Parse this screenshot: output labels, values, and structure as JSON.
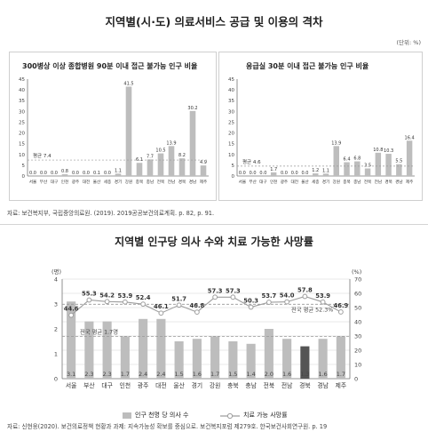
{
  "page": {
    "title1": "지역별(시·도) 의료서비스 공급 및 이용의 격차",
    "unit1": "(단위: %)",
    "source1": "자료: 보건복지부, 국립중앙의료원. (2019). 2019공공보건의료계획. p. 82, p. 91.",
    "title2": "지역별 인구당 의사 수와 치료 가능한 사망률",
    "source2": "자료: 신현웅(2020). 보건의료정책 현황과 과제: 지속가능성 확보를 중심으로. 보건복지포럼 제279호. 한국보건사회연구원. p. 19"
  },
  "colors": {
    "bar": "#bdbdbd",
    "bar_highlight": "#555555",
    "line": "#9e9e9e",
    "axis": "#777777",
    "avg_line": "#999999"
  },
  "chart_data": [
    {
      "type": "bar",
      "title": "300병상 이상 종합병원 90분 이내 접근 불가능 인구 비율",
      "categories": [
        "서울",
        "부산",
        "대구",
        "인천",
        "광주",
        "대전",
        "울산",
        "세종",
        "경기",
        "강원",
        "충북",
        "충남",
        "전북",
        "전남",
        "경북",
        "경남",
        "제주"
      ],
      "values": [
        0.0,
        0.0,
        0.0,
        0.8,
        0.0,
        0.0,
        0.1,
        0.0,
        1.1,
        41.5,
        6.1,
        7.7,
        10.5,
        13.9,
        8.2,
        30.2,
        4.9
      ],
      "value_labels": [
        "0.0",
        "0.0",
        "0.0",
        "0.8",
        "0.0",
        "0.0",
        "0.1",
        "0.0",
        "1.1",
        "41.5",
        "6.1",
        "7.7",
        "10.5",
        "13.9",
        "8.2",
        "30.2",
        "4.9"
      ],
      "ylim": [
        0,
        45
      ],
      "yticks": [
        0,
        5,
        10,
        15,
        20,
        25,
        30,
        35,
        40,
        45
      ],
      "average": {
        "label": "평균 7.4",
        "value": 7.4
      },
      "grid": false
    },
    {
      "type": "bar",
      "title": "응급실 30분 이내 접근 불가능 인구 비율",
      "categories": [
        "서울",
        "부산",
        "대구",
        "인천",
        "광주",
        "대전",
        "울산",
        "세종",
        "경기",
        "강원",
        "충북",
        "충남",
        "전북",
        "전남",
        "경북",
        "경남",
        "제주"
      ],
      "values": [
        0.0,
        0.0,
        0.0,
        1.7,
        0.0,
        0.0,
        0.0,
        1.2,
        1.1,
        13.9,
        6.4,
        6.8,
        3.5,
        10.8,
        10.3,
        5.5,
        16.4
      ],
      "value_labels": [
        "0.0",
        "0.0",
        "0.0",
        "1.7",
        "0.0",
        "0.0",
        "0.0",
        "1.2",
        "1.1",
        "13.9",
        "6.4",
        "6.8",
        "3.5",
        "10.8",
        "10.3",
        "5.5",
        "16.4"
      ],
      "ylim": [
        0,
        45
      ],
      "yticks": [
        0,
        5,
        10,
        15,
        20,
        25,
        30,
        35,
        40,
        45
      ],
      "average": {
        "label": "평균 4.6",
        "value": 4.6
      },
      "grid": false
    },
    {
      "type": "bar",
      "title": "지역별 인구당 의사 수와 치료 가능한 사망률",
      "categories": [
        "서울",
        "부산",
        "대구",
        "인천",
        "광주",
        "대전",
        "울산",
        "경기",
        "강원",
        "충북",
        "충남",
        "전북",
        "전남",
        "경북",
        "경남",
        "제주"
      ],
      "left_axis": {
        "label": "(명)",
        "ylim": [
          0,
          4
        ],
        "ticks": [
          0,
          1,
          2,
          3,
          4
        ]
      },
      "right_axis": {
        "label": "(%)",
        "ylim": [
          0,
          70
        ],
        "ticks": [
          0,
          10,
          20,
          30,
          40,
          50,
          60,
          70
        ]
      },
      "series": [
        {
          "name": "인구 천명 당 의사 수",
          "type": "bar",
          "axis": "left",
          "values": [
            3.1,
            2.3,
            2.3,
            1.7,
            2.4,
            2.4,
            1.5,
            1.6,
            1.7,
            1.5,
            1.4,
            2.0,
            1.6,
            1.3,
            1.6,
            1.7
          ],
          "value_labels": [
            "3.1",
            "2.3",
            "2.3",
            "1.7",
            "2.4",
            "2.4",
            "1.5",
            "1.6",
            "1.7",
            "1.5",
            "1.4",
            "2.0",
            "1.6",
            "1.3",
            "1.6",
            "1.7"
          ]
        },
        {
          "name": "치료 가능 사망률",
          "type": "line",
          "axis": "right",
          "values": [
            44.6,
            55.3,
            54.2,
            53.9,
            52.4,
            46.1,
            51.7,
            46.8,
            57.3,
            57.3,
            50.3,
            53.7,
            54.0,
            57.8,
            53.9,
            46.9
          ],
          "value_labels": [
            "44.6",
            "55.3",
            "54.2",
            "53.9",
            "52.4",
            "46.1",
            "51.7",
            "46.8",
            "57.3",
            "57.3",
            "50.3",
            "53.7",
            "54.0",
            "57.8",
            "53.9",
            "46.9"
          ]
        }
      ],
      "reference_lines": [
        {
          "label": "전국 평균 1.7명",
          "axis": "left",
          "value": 1.7
        },
        {
          "label": "전국 평균 52.3%",
          "axis": "right",
          "value": 52.3
        }
      ],
      "highlight_category": "경북",
      "legend_position": "bottom",
      "grid": true
    }
  ]
}
